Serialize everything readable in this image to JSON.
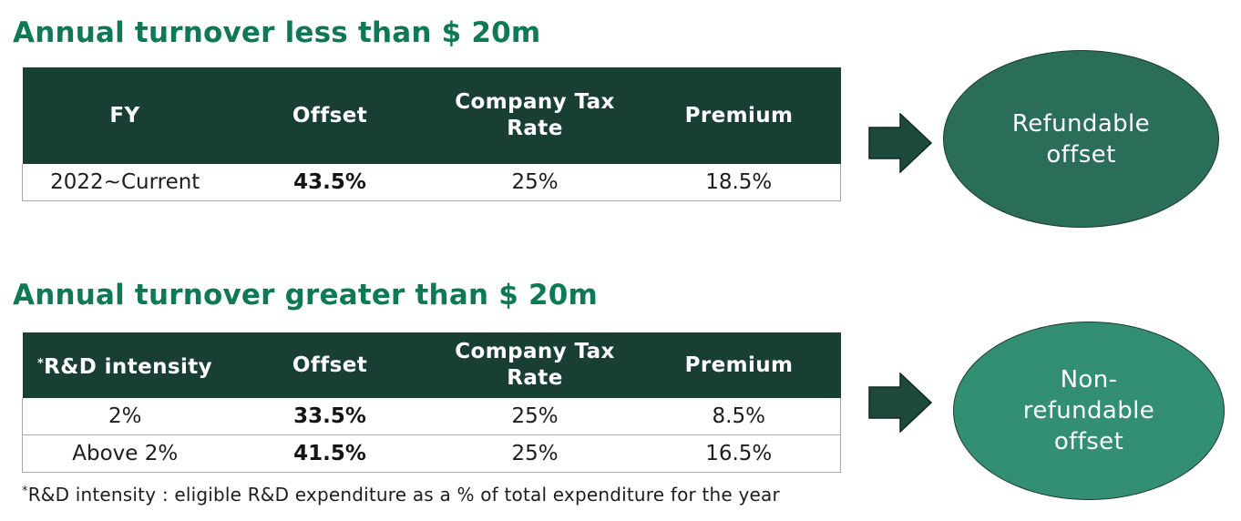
{
  "section1": {
    "title": "Annual turnover less than $ 20m",
    "headers": [
      "FY",
      "Offset",
      "Company Tax Rate",
      "Premium"
    ],
    "rows": [
      {
        "col1": "2022~Current",
        "offset": "43.5%",
        "tax_rate": "25%",
        "premium": "18.5%"
      }
    ],
    "result": "Refundable offset"
  },
  "section2": {
    "title": "Annual turnover greater than $ 20m",
    "headers": [
      "R&D intensity",
      "Offset",
      "Company Tax Rate",
      "Premium"
    ],
    "header_mark": "*",
    "rows": [
      {
        "col1": "2%",
        "offset": "33.5%",
        "tax_rate": "25%",
        "premium": "8.5%"
      },
      {
        "col1": "Above 2%",
        "offset": "41.5%",
        "tax_rate": "25%",
        "premium": "16.5%"
      }
    ],
    "result": "Non-refundable offset"
  },
  "footnote": {
    "mark": "*",
    "text": "R&D intensity : eligible R&D expenditure as a % of total expenditure for the year"
  },
  "colors": {
    "title": "#0d7a55",
    "table_header": "#193f35",
    "arrow": "#1e4a3d",
    "oval_refundable": "#2a6e5a",
    "oval_non_refundable": "#338f74"
  },
  "icons": {
    "arrow": "arrow-right-icon"
  }
}
